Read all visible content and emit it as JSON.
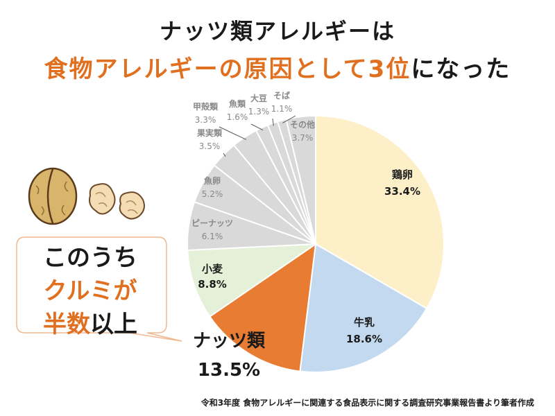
{
  "title": {
    "line1": "ナッツ類アレルギーは",
    "line2_highlight": "食物アレルギーの原因として3位",
    "line2_rest": "になった"
  },
  "callout": {
    "line1": "このうち",
    "line2": "クルミが",
    "line3_highlight": "半数",
    "line3_rest": "以上"
  },
  "source": "令和3年度 食物アレルギーに関連する食品表示に関する調査研究事業報告書より筆者作成",
  "colors": {
    "accent": "#e0701f",
    "egg": "#fdf0c8",
    "milk": "#c3d9ef",
    "nuts": "#e87c33",
    "wheat": "#e5f0d8",
    "other": "#d9d9d9"
  },
  "chart_data": {
    "type": "pie",
    "unit": "%",
    "slices": [
      {
        "label": "鶏卵",
        "value": 33.4,
        "display": "33.4%"
      },
      {
        "label": "牛乳",
        "value": 18.6,
        "display": "18.6%"
      },
      {
        "label": "ナッツ類",
        "value": 13.5,
        "display": "13.5%"
      },
      {
        "label": "小麦",
        "value": 8.8,
        "display": "8.8%"
      },
      {
        "label": "ピーナッツ",
        "value": 6.1,
        "display": "6.1%"
      },
      {
        "label": "魚卵",
        "value": 5.2,
        "display": "5.2%"
      },
      {
        "label": "果実類",
        "value": 3.5,
        "display": "3.5%"
      },
      {
        "label": "甲殻類",
        "value": 3.3,
        "display": "3.3%"
      },
      {
        "label": "魚類",
        "value": 1.6,
        "display": "1.6%"
      },
      {
        "label": "大豆",
        "value": 1.3,
        "display": "1.3%"
      },
      {
        "label": "そば",
        "value": 1.1,
        "display": "1.1%"
      },
      {
        "label": "その他",
        "value": 3.7,
        "display": "3.7%"
      }
    ]
  }
}
